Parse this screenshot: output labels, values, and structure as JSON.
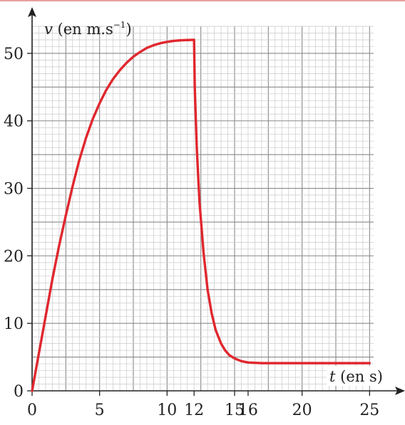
{
  "chart_data": {
    "type": "line",
    "title": "",
    "xlabel": {
      "var": "t",
      "rest": " (en s)"
    },
    "ylabel": {
      "var": "v",
      "rest": " (en m.s",
      "sup": "−1",
      "close": ")"
    },
    "xlim": [
      0,
      25.3
    ],
    "ylim": [
      0,
      54
    ],
    "x_ticks": [
      0,
      5,
      10,
      12,
      15,
      16,
      20,
      25
    ],
    "y_ticks": [
      0,
      10,
      20,
      30,
      40,
      50
    ],
    "grid": true,
    "grid_minor_step": {
      "x": 0.5,
      "y": 1
    },
    "grid_major_step": {
      "x": 2.5,
      "y": 5
    },
    "series": [
      {
        "color": "#e0272e",
        "x": [
          0,
          0.5,
          1,
          1.5,
          2,
          2.5,
          3,
          3.5,
          4,
          4.5,
          5,
          5.5,
          6,
          6.5,
          7,
          7.5,
          8,
          8.5,
          9,
          9.5,
          10,
          10.5,
          11,
          11.5,
          12,
          12.05,
          12.2,
          12.4,
          12.7,
          13,
          13.3,
          13.6,
          14,
          14.3,
          14.6,
          15,
          15.5,
          16,
          17,
          18,
          20,
          22,
          25
        ],
        "y": [
          0,
          5.5,
          11,
          16.5,
          21.5,
          26,
          30.3,
          34.2,
          37.5,
          40.3,
          42.6,
          44.6,
          46.2,
          47.5,
          48.6,
          49.5,
          50.2,
          50.8,
          51.2,
          51.5,
          51.7,
          51.85,
          51.93,
          51.97,
          52,
          45,
          36,
          28,
          20.5,
          15,
          11.5,
          9,
          7,
          6,
          5.3,
          4.8,
          4.4,
          4.2,
          4.1,
          4.1,
          4.1,
          4.1,
          4.1
        ]
      }
    ]
  }
}
